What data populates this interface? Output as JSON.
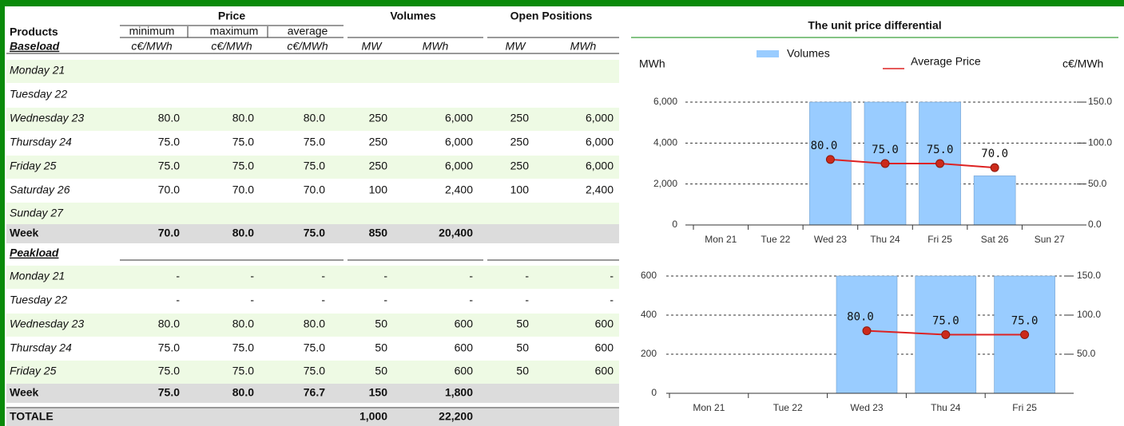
{
  "table": {
    "header": {
      "products": "Products",
      "groups": [
        "Price",
        "Volumes",
        "Open Positions"
      ],
      "subcolumns": [
        "minimum",
        "maximum",
        "average"
      ]
    },
    "sections": [
      {
        "name": "Baseload",
        "units": [
          "c€/MWh",
          "c€/MWh",
          "c€/MWh",
          "MW",
          "MWh",
          "MW",
          "MWh"
        ],
        "rows": [
          [
            "Monday 21"
          ],
          [
            "Tuesday 22"
          ],
          [
            "Wednesday 23",
            "80.0",
            "80.0",
            "80.0",
            "250",
            "6,000",
            "250",
            "6,000"
          ],
          [
            "Thursday 24",
            "75.0",
            "75.0",
            "75.0",
            "250",
            "6,000",
            "250",
            "6,000"
          ],
          [
            "Friday 25",
            "75.0",
            "75.0",
            "75.0",
            "250",
            "6,000",
            "250",
            "6,000"
          ],
          [
            "Saturday 26",
            "70.0",
            "70.0",
            "70.0",
            "100",
            "2,400",
            "100",
            "2,400"
          ],
          [
            "Sunday 27"
          ]
        ],
        "total": [
          "Week",
          "70.0",
          "80.0",
          "75.0",
          "850",
          "20,400"
        ]
      },
      {
        "name": "Peakload",
        "rows": [
          [
            "Monday 21",
            "-",
            "-",
            "-",
            "-",
            "-",
            "-",
            "-"
          ],
          [
            "Tuesday 22",
            "-",
            "-",
            "-",
            "-",
            "-",
            "-",
            "-"
          ],
          [
            "Wednesday 23",
            "80.0",
            "80.0",
            "80.0",
            "50",
            "600",
            "50",
            "600"
          ],
          [
            "Thursday 24",
            "75.0",
            "75.0",
            "75.0",
            "50",
            "600",
            "50",
            "600"
          ],
          [
            "Friday 25",
            "75.0",
            "75.0",
            "75.0",
            "50",
            "600",
            "50",
            "600"
          ]
        ],
        "total": [
          "Week",
          "75.0",
          "80.0",
          "76.7",
          "150",
          "1,800"
        ]
      }
    ],
    "grand_total": [
      "TOTALE",
      null,
      null,
      null,
      "1,000",
      "22,200"
    ]
  },
  "chart_data": [
    {
      "type": "bar",
      "title": "The unit price differential",
      "ylabel": "MWh",
      "y2label": "c€/MWh",
      "categories": [
        "Mon 21",
        "Tue 22",
        "Wed 23",
        "Thu 24",
        "Fri 25",
        "Sat 26",
        "Sun 27"
      ],
      "series": [
        {
          "name": "Volumes",
          "type": "bar",
          "color": "#99ccff",
          "values": [
            null,
            null,
            6000,
            6000,
            6000,
            2400,
            null
          ]
        },
        {
          "name": "Average Price",
          "type": "line",
          "axis": "y2",
          "color": "#dd2222",
          "values": [
            null,
            null,
            80,
            75,
            75,
            70,
            null
          ],
          "value_labels": [
            null,
            null,
            "80.0",
            "75.0",
            "75.0",
            "70.0",
            null
          ]
        }
      ],
      "ylim": [
        0,
        6000
      ],
      "yticks": [
        0,
        {
          "value": 2000,
          "label": "2,000"
        },
        {
          "value": 4000,
          "label": "4,000"
        },
        {
          "value": 6000,
          "label": "6,000"
        }
      ],
      "y2lim": [
        0,
        150
      ],
      "y2ticks": [
        {
          "value": 0,
          "label": "0.0"
        },
        {
          "value": 50,
          "label": "50.0"
        },
        {
          "value": 100,
          "label": "100.0"
        },
        {
          "value": 150,
          "label": "150.0"
        }
      ],
      "grid": true,
      "legend": "top"
    },
    {
      "type": "bar",
      "categories": [
        "Mon 21",
        "Tue 22",
        "Wed 23",
        "Thu 24",
        "Fri 25"
      ],
      "series": [
        {
          "type": "bar",
          "color": "#99ccff",
          "values": [
            null,
            null,
            600,
            600,
            600
          ]
        },
        {
          "type": "line",
          "axis": "y2",
          "color": "#dd2222",
          "values": [
            null,
            null,
            80,
            75,
            75
          ],
          "value_labels": [
            null,
            null,
            "80.0",
            "75.0",
            "75.0"
          ]
        }
      ],
      "ylim": [
        0,
        600
      ],
      "yticks": [
        0,
        200,
        400,
        600
      ],
      "y2lim": [
        0,
        150
      ],
      "y2ticks": [
        {
          "value": 50,
          "label": "50.0"
        },
        {
          "value": 100,
          "label": "100.0"
        },
        {
          "value": 150,
          "label": "150.0"
        }
      ],
      "grid": true
    }
  ]
}
